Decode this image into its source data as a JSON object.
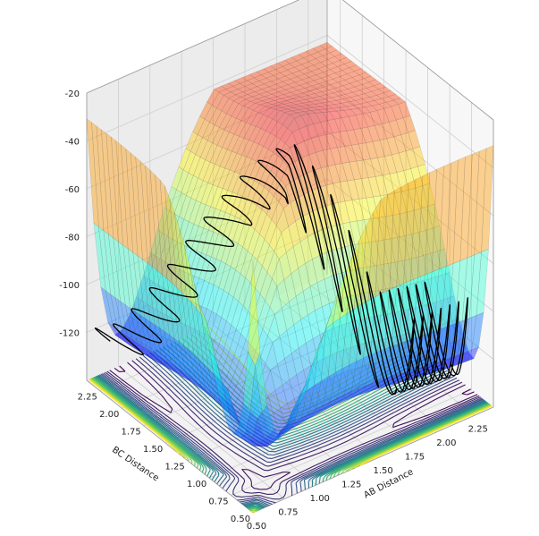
{
  "chart_data": {
    "type": "surface3d",
    "title": "",
    "xlabel": "AB Distance",
    "ylabel": "BC Distance",
    "zlabel": "",
    "xlim": [
      0.5,
      2.4
    ],
    "ylim": [
      0.5,
      2.4
    ],
    "zlim": [
      -140,
      -20
    ],
    "x_ticks": [
      "0.50",
      "0.75",
      "1.00",
      "1.25",
      "1.50",
      "1.75",
      "2.00",
      "2.25"
    ],
    "y_ticks": [
      "0.50",
      "0.75",
      "1.00",
      "1.25",
      "1.50",
      "1.75",
      "2.00",
      "2.25"
    ],
    "z_ticks": [
      "-20",
      "-40",
      "-60",
      "-80",
      "-100",
      "-120"
    ],
    "x_tick_values": [
      0.5,
      0.75,
      1.0,
      1.25,
      1.5,
      1.75,
      2.0,
      2.25
    ],
    "y_tick_values": [
      0.5,
      0.75,
      1.0,
      1.25,
      1.5,
      1.75,
      2.0,
      2.25
    ],
    "z_tick_values": [
      -20,
      -40,
      -60,
      -80,
      -100,
      -120
    ],
    "surface": {
      "description": "potential energy surface with two valleys along each axis and a ridge near the diagonal",
      "well_depth": -127,
      "asymptote": -43,
      "peak": -20,
      "colormap": "jet"
    },
    "contours": {
      "colormap": "viridis",
      "levels": 22,
      "plane_z": -140
    },
    "trajectory": {
      "color": "#000000",
      "oscillations": 22
    },
    "grid": true,
    "legend": "none"
  }
}
